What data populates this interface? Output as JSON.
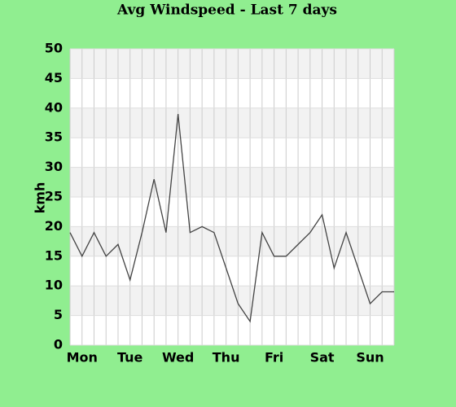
{
  "chart_data": {
    "type": "line",
    "title": "Avg Windspeed - Last 7 days",
    "y_label": "kmh",
    "categories": [
      null,
      "Mon",
      null,
      null,
      null,
      "Tue",
      null,
      null,
      null,
      "Wed",
      null,
      null,
      null,
      "Thu",
      null,
      null,
      null,
      "Fri",
      null,
      null,
      null,
      "Sat",
      null,
      null,
      null,
      "Sun",
      null,
      null
    ],
    "series": [
      {
        "name": "Windspeed",
        "color": "#444444",
        "values": [
          19,
          15,
          19,
          15,
          17,
          11,
          19,
          28,
          19,
          39,
          19,
          20,
          19,
          13,
          7,
          4,
          19,
          15,
          15,
          17,
          19,
          22,
          13,
          19,
          13,
          7,
          9,
          9
        ]
      }
    ],
    "ylim": [
      0,
      50
    ],
    "yticks": [
      0,
      5,
      10,
      15,
      20,
      25,
      30,
      35,
      40,
      45,
      50
    ],
    "grid": true
  }
}
